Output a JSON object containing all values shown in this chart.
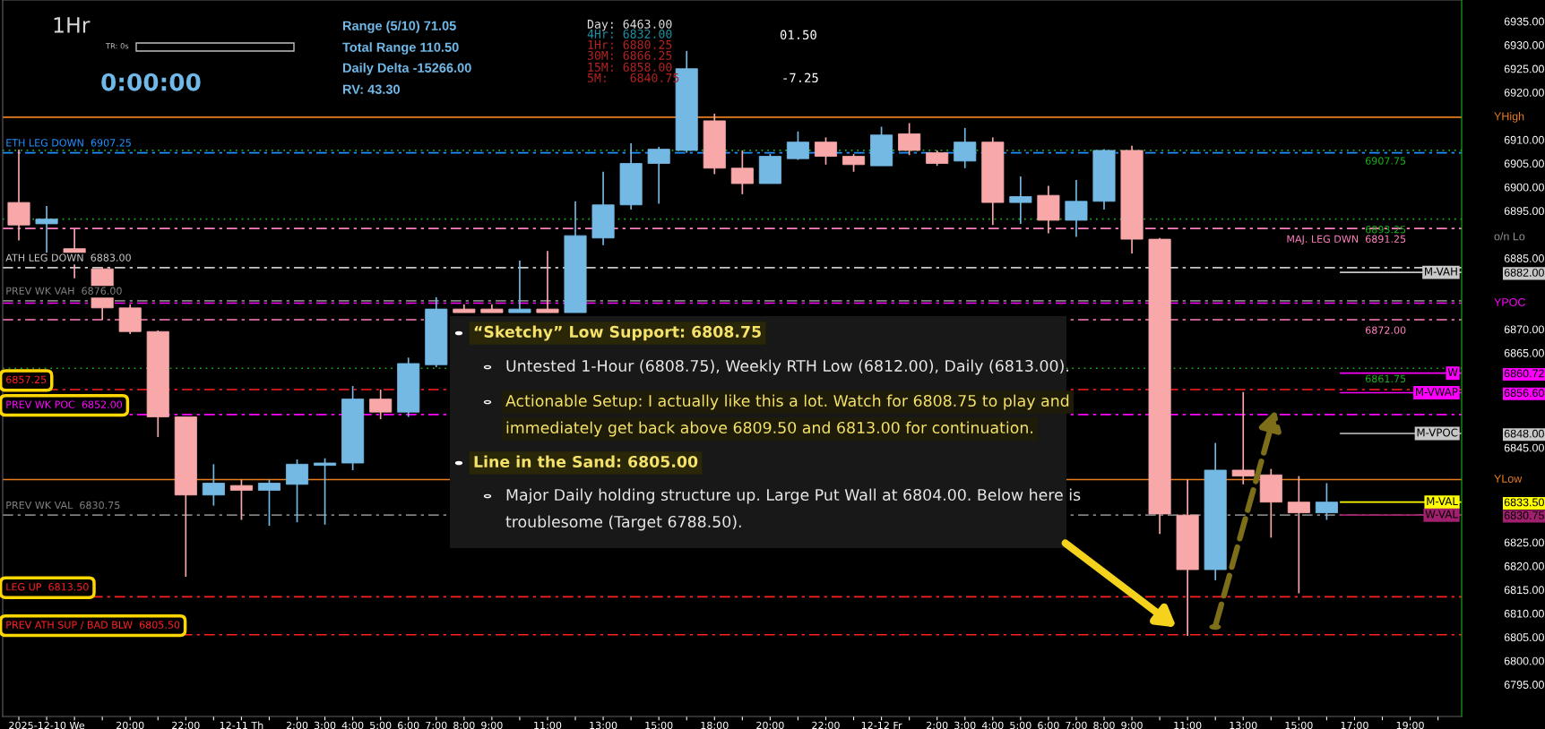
{
  "chart_data": {
    "type": "candlestick",
    "categories": [
      null,
      "2025-12-10 We",
      null,
      null,
      "20:00",
      null,
      "22:00",
      null,
      "12-11 Th",
      null,
      "2:00",
      "3:00",
      "4:00",
      "5:00",
      "6:00",
      "7:00",
      "8:00",
      "9:00",
      null,
      "11:00",
      null,
      "13:00",
      null,
      "15:00",
      null,
      "18:00",
      null,
      "20:00",
      null,
      "22:00",
      null,
      "12-12 Fr",
      null,
      "2:00",
      "3:00",
      "4:00",
      "5:00",
      "6:00",
      "7:00",
      "8:00",
      "9:00",
      null,
      "11:00",
      null,
      "13:00",
      null,
      "15:00",
      null,
      "17:00",
      null,
      "19:00",
      null
    ],
    "ohlc": [
      [
        6896.75,
        6908,
        6888.75,
        6892
      ],
      [
        6892.25,
        6896,
        6886,
        6893.25
      ],
      [
        6887,
        6891.25,
        6880.75,
        6886
      ],
      [
        6882.75,
        6883,
        6872,
        6874.5
      ],
      [
        6874.5,
        6875.25,
        6869,
        6869.5
      ],
      [
        6869.5,
        6869.75,
        6847.25,
        6851.5
      ],
      [
        6851.5,
        6851.5,
        6817.75,
        6835
      ],
      [
        6835,
        6841.5,
        6832.75,
        6837.5
      ],
      [
        6837,
        6838.25,
        6829.75,
        6836
      ],
      [
        6836,
        6838.25,
        6828.5,
        6837.5
      ],
      [
        6837.25,
        6842.5,
        6829.25,
        6841.5
      ],
      [
        6841.25,
        6842.75,
        6828.75,
        6841.75
      ],
      [
        6841.75,
        6858,
        6840.25,
        6855.25
      ],
      [
        6855.25,
        6857.25,
        6851,
        6852.5
      ],
      [
        6852.5,
        6864,
        6851.5,
        6862.75
      ],
      [
        6862.5,
        6876.75,
        6862,
        6874.25
      ],
      [
        6874.25,
        6875.25,
        6873.5,
        6873.5
      ],
      [
        6874.25,
        6875.25,
        6873.5,
        6873.5
      ],
      [
        6873.5,
        6884.5,
        6873.5,
        6874.25
      ],
      [
        6874.25,
        6886.5,
        6873.5,
        6873.5
      ],
      [
        6873.5,
        6897,
        6873.5,
        6889.75
      ],
      [
        6889.25,
        6903.25,
        6887.75,
        6896.25
      ],
      [
        6896.25,
        6909.25,
        6895.25,
        6905
      ],
      [
        6905,
        6908.5,
        6896.5,
        6908
      ],
      [
        6907.75,
        6928.75,
        6907.25,
        6925
      ],
      [
        6914,
        6915.5,
        6902.75,
        6904
      ],
      [
        6904,
        6907.75,
        6898.5,
        6900.75
      ],
      [
        6900.75,
        6907,
        6900.75,
        6906.5
      ],
      [
        6906,
        6911.75,
        6905.75,
        6909.5
      ],
      [
        6909.5,
        6910.5,
        6904.75,
        6906.5
      ],
      [
        6906.5,
        6907,
        6903.25,
        6904.75
      ],
      [
        6904.5,
        6912.75,
        6904.5,
        6911
      ],
      [
        6911.25,
        6913.5,
        6906.75,
        6907.75
      ],
      [
        6907.25,
        6907.75,
        6904.5,
        6905
      ],
      [
        6905.5,
        6912.5,
        6904,
        6909.5
      ],
      [
        6909.5,
        6910.5,
        6892,
        6896.75
      ],
      [
        6896.75,
        6902.25,
        6892.25,
        6898
      ],
      [
        6898.25,
        6900.25,
        6890.25,
        6893
      ],
      [
        6893,
        6901.5,
        6889.5,
        6897
      ],
      [
        6897,
        6908,
        6895.25,
        6907.75
      ],
      [
        6907.75,
        6908.75,
        6886,
        6889
      ],
      [
        6889,
        6889.25,
        6826.75,
        6831
      ],
      [
        6830.75,
        6838.25,
        6805.25,
        6819.25
      ],
      [
        6819.25,
        6846,
        6817,
        6840.25
      ],
      [
        6840.25,
        6856.75,
        6837.25,
        6839
      ],
      [
        6839.25,
        6840.5,
        6826,
        6833.5
      ],
      [
        6833.5,
        6839,
        6814.25,
        6831.25
      ],
      [
        6831.25,
        6837.5,
        6829.75,
        6833.5
      ],
      null,
      null,
      null,
      null
    ],
    "colors": [
      "#f9a8aa",
      "#74b9e4",
      "#f9a8aa",
      "#f9a8aa",
      "#f9a8aa",
      "#f9a8aa",
      "#f9a8aa",
      "#74b9e4",
      "#f9a8aa",
      "#74b9e4",
      "#74b9e4",
      "#74b9e4",
      "#74b9e4",
      "#f9a8aa",
      "#74b9e4",
      "#74b9e4",
      "#f9a8aa",
      "#f9a8aa",
      "#74b9e4",
      "#f9a8aa",
      "#74b9e4",
      "#74b9e4",
      "#74b9e4",
      "#74b9e4",
      "#74b9e4",
      "#f9a8aa",
      "#f9a8aa",
      "#74b9e4",
      "#74b9e4",
      "#f9a8aa",
      "#f9a8aa",
      "#74b9e4",
      "#f9a8aa",
      "#f9a8aa",
      "#74b9e4",
      "#f9a8aa",
      "#74b9e4",
      "#f9a8aa",
      "#74b9e4",
      "#74b9e4",
      "#f9a8aa",
      "#f9a8aa",
      "#f9a8aa",
      "#74b9e4",
      "#f9a8aa",
      "#f9a8aa",
      "#f9a8aa",
      "#74b9e4",
      null,
      null,
      null,
      null
    ],
    "ylim": [
      6788.25,
      6939.5
    ],
    "yticks": [
      {
        "value": 6795,
        "label": "6795.00"
      },
      {
        "value": 6800,
        "label": "6800.00"
      },
      {
        "value": 6805,
        "label": "6805.00"
      },
      {
        "value": 6810,
        "label": "6810.00"
      },
      {
        "value": 6815,
        "label": "6815.00"
      },
      {
        "value": 6820,
        "label": "6820.00"
      },
      {
        "value": 6825,
        "label": "6825.00"
      },
      {
        "value": 6830.75,
        "label": "6830.75"
      },
      {
        "value": 6833.5,
        "label": "6833.50"
      },
      {
        "value": 6845,
        "label": "6845.00"
      },
      {
        "value": 6848,
        "label": "6848.00"
      },
      {
        "value": 6856.6,
        "label": "6856.60"
      },
      {
        "value": 6860.72,
        "label": "6860.72"
      },
      {
        "value": 6865,
        "label": "6865.00"
      },
      {
        "value": 6870,
        "label": "6870.00"
      },
      {
        "value": 6882,
        "label": "6882.00"
      },
      {
        "value": 6885,
        "label": "6885.00"
      },
      {
        "value": 6895,
        "label": "6895.00"
      },
      {
        "value": 6900,
        "label": "6900.00"
      },
      {
        "value": 6905,
        "label": "6905.00"
      },
      {
        "value": 6910,
        "label": "6910.00"
      },
      {
        "value": 6920,
        "label": "6920.00"
      },
      {
        "value": 6925,
        "label": "6925.00"
      },
      {
        "value": 6930,
        "label": "6930.00"
      },
      {
        "value": 6935,
        "label": "6935.00"
      }
    ],
    "grid": false,
    "legend": false,
    "ref_lines": [
      {
        "axis": "y",
        "value": 6907.25,
        "label": "ETH LEG DOWN  6907.25",
        "color": "#1e90ff",
        "line_style": "dashed"
      },
      {
        "axis": "y",
        "value": 6883,
        "label": "ATH LEG DOWN  6883.00",
        "color": "#c8c8c8",
        "line_style": "dashed"
      },
      {
        "axis": "y",
        "value": 6876,
        "label": "PREV WK VAH  6876.00",
        "color": "#808080",
        "line_style": "dashed"
      },
      {
        "axis": "y",
        "value": 6857.25,
        "label": "6857.25",
        "color": "#ff2020",
        "line_style": "dashed"
      },
      {
        "axis": "y",
        "value": 6852,
        "label": "PREV WK POC  6852.00",
        "color": "#ff00ff",
        "line_style": "dashed"
      },
      {
        "axis": "y",
        "value": 6830.75,
        "label": "PREV WK VAL  6830.75",
        "color": "#808080",
        "line_style": "dashed"
      },
      {
        "axis": "y",
        "value": 6813.5,
        "label": "LEG UP  6813.50",
        "color": "#ff2020",
        "line_style": "dashed"
      },
      {
        "axis": "y",
        "value": 6805.5,
        "label": "PREV ATH SUP / BAD BLW  6805.50",
        "color": "#ff2020",
        "line_style": "dashed"
      },
      {
        "axis": "y",
        "value": 6907.75,
        "label": "6907.75",
        "color": "#19b019",
        "line_style": "dotted"
      },
      {
        "axis": "y",
        "value": 6893.25,
        "label": "6893.25",
        "color": "#19b019",
        "line_style": "dotted"
      },
      {
        "axis": "y",
        "value": 6891.25,
        "label": "MAJ. LEG DWN  6891.25",
        "color": "#ff7fbf",
        "line_style": "dashed"
      },
      {
        "axis": "y",
        "value": 6872,
        "label": "6872.00",
        "color": "#ff7fbf",
        "line_style": "dashed"
      },
      {
        "axis": "y",
        "value": 6861.75,
        "label": "6861.75",
        "color": "#19b019",
        "line_style": "dotted"
      },
      {
        "axis": "y",
        "value": 6882,
        "label": "M-VAH",
        "color": "#c8c8c8",
        "line_style": "solid"
      },
      {
        "axis": "y",
        "value": 6860.72,
        "label": "W",
        "color": "#ff00ff",
        "line_style": "solid"
      },
      {
        "axis": "y",
        "value": 6856.6,
        "label": "M-VWAP",
        "color": "#ff00ff",
        "line_style": "solid"
      },
      {
        "axis": "y",
        "value": 6848,
        "label": "M-VPOC",
        "color": "#c8c8c8",
        "line_style": "solid"
      },
      {
        "axis": "y",
        "value": 6833.5,
        "label": "M-VAL",
        "color": "#ffff00",
        "line_style": "solid"
      },
      {
        "axis": "y",
        "value": 6830.75,
        "label": "W-VAL",
        "color": "#a0206e",
        "line_style": "solid"
      },
      {
        "axis": "y",
        "value": 6914.75,
        "label": "YHigh",
        "color": "#e87d1e",
        "line_style": "solid"
      },
      {
        "axis": "y",
        "value": 6875.5,
        "label": "YPOC",
        "color": "#ff00ff",
        "line_style": "dashed"
      },
      {
        "axis": "y",
        "value": 6838.25,
        "label": "YLow",
        "color": "#e87d1e",
        "line_style": "solid"
      }
    ],
    "annotations": [
      "1Hr",
      "TR: 0s",
      "0:00:00",
      "Range (5/10) 71.05",
      "Total Range 110.50",
      "Daily Delta -15266.00",
      "RV: 43.30",
      "Day: 6463.00",
      "4Hr: 6832.00",
      "1Hr: 6880.25",
      "30M: 6866.25",
      "15M: 6858.00",
      "5M:   6840.75",
      "01.50",
      "-7.25",
      "“Sketchy” Low Support: 6808.75",
      "Untested 1-Hour (6808.75), Weekly RTH Low (6812.00), Daily (6813.00).",
      "Actionable Setup: I actually like this a lot. Watch for 6808.75 to play and",
      "immediately get back above 6809.50 and 6813.00 for continuation.",
      "Line in the Sand: 6805.00",
      "Major Daily holding structure up. Large Put Wall at 6804.00. Below here is",
      "troublesome (Target 6788.50).",
      "o/n Lo"
    ]
  }
}
